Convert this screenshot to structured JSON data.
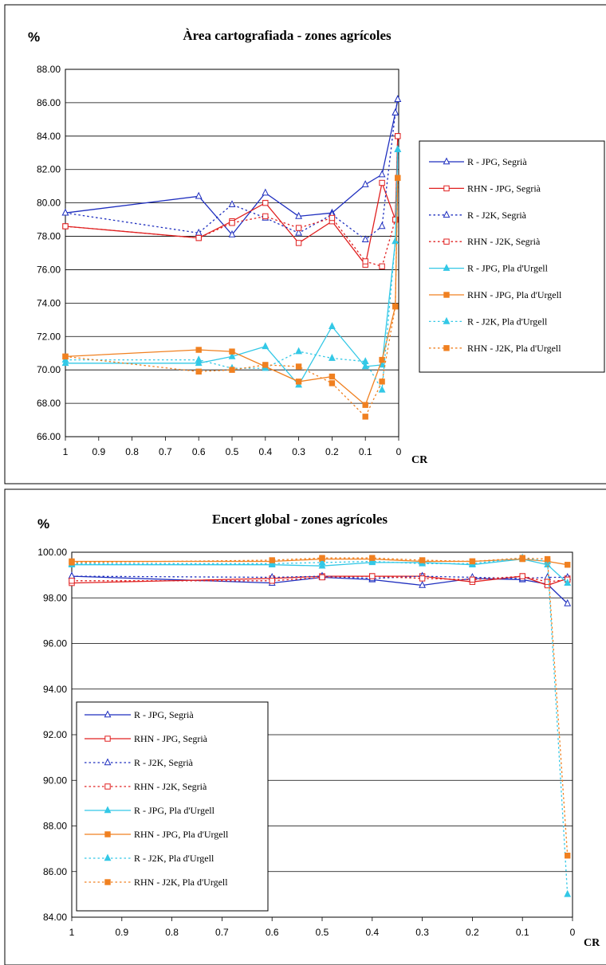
{
  "charts": [
    {
      "title": "Àrea  cartografiada - zones agrícoles",
      "y_unit_label": "%",
      "x_axis_label": "CR",
      "y_ticks": [
        "88.00",
        "86.00",
        "84.00",
        "82.00",
        "80.00",
        "78.00",
        "76.00",
        "74.00",
        "72.00",
        "70.00",
        "68.00",
        "66.00"
      ],
      "x_ticks": [
        "1",
        "0.9",
        "0.8",
        "0.7",
        "0.6",
        "0.5",
        "0.4",
        "0.3",
        "0.2",
        "0.1",
        "0"
      ]
    },
    {
      "title": "Encert global - zones agrícoles",
      "y_unit_label": "%",
      "x_axis_label": "CR",
      "y_ticks": [
        "100.00",
        "98.00",
        "96.00",
        "94.00",
        "92.00",
        "90.00",
        "88.00",
        "86.00",
        "84.00"
      ],
      "x_ticks": [
        "1",
        "0.9",
        "0.8",
        "0.7",
        "0.6",
        "0.5",
        "0.4",
        "0.3",
        "0.2",
        "0.1",
        "0"
      ]
    }
  ],
  "series_styles": [
    {
      "color": "#1f2fbf",
      "dash": false,
      "marker": "triangle-open"
    },
    {
      "color": "#e02020",
      "dash": false,
      "marker": "square-open"
    },
    {
      "color": "#1f2fbf",
      "dash": true,
      "marker": "triangle-open"
    },
    {
      "color": "#e02020",
      "dash": true,
      "marker": "square-open"
    },
    {
      "color": "#33c8e6",
      "dash": false,
      "marker": "triangle-filled"
    },
    {
      "color": "#f08020",
      "dash": false,
      "marker": "square-filled"
    },
    {
      "color": "#33c8e6",
      "dash": true,
      "marker": "triangle-filled"
    },
    {
      "color": "#f08020",
      "dash": true,
      "marker": "square-filled"
    }
  ],
  "chart_data": [
    {
      "type": "line",
      "title": "Àrea  cartografiada - zones agrícoles",
      "xlabel": "CR",
      "ylabel": "%",
      "xlim": [
        1,
        0
      ],
      "ylim": [
        66,
        88
      ],
      "legend": "right",
      "grid": true,
      "series": [
        {
          "name": "R - JPG, Segrià",
          "x": [
            1,
            0.6,
            0.5,
            0.4,
            0.3,
            0.2,
            0.1,
            0.05,
            0.01,
            0.01
          ],
          "y": [
            79.4,
            80.4,
            78.1,
            80.6,
            79.2,
            79.4,
            81.1,
            81.7,
            85.4,
            86.2
          ]
        },
        {
          "name": "RHN - JPG, Segrià",
          "x": [
            1,
            0.6,
            0.5,
            0.4,
            0.3,
            0.2,
            0.1,
            0.05,
            0.01,
            0.01
          ],
          "y": [
            78.6,
            77.9,
            78.9,
            80.0,
            77.6,
            78.9,
            76.3,
            81.2,
            79.0,
            84.0
          ]
        },
        {
          "name": "R - J2K, Segrià",
          "x": [
            1,
            0.6,
            0.5,
            0.4,
            0.3,
            0.2,
            0.1,
            0.05,
            0.01,
            0.01
          ],
          "y": [
            79.4,
            78.2,
            79.9,
            79.1,
            78.2,
            79.3,
            77.8,
            78.6,
            85.4,
            86.2
          ]
        },
        {
          "name": "RHN - J2K, Segrià",
          "x": [
            1,
            0.6,
            0.5,
            0.4,
            0.3,
            0.2,
            0.1,
            0.05,
            0.01,
            0.01
          ],
          "y": [
            78.6,
            77.9,
            78.8,
            79.2,
            78.5,
            79.1,
            76.5,
            76.2,
            79.0,
            84.0
          ]
        },
        {
          "name": "R - JPG, Pla d'Urgell",
          "x": [
            1,
            0.6,
            0.5,
            0.4,
            0.3,
            0.2,
            0.1,
            0.05,
            0.01,
            0.01
          ],
          "y": [
            70.4,
            70.4,
            70.8,
            71.4,
            69.1,
            72.6,
            70.2,
            70.3,
            77.7,
            83.2
          ]
        },
        {
          "name": "RHN - JPG, Pla d'Urgell",
          "x": [
            1,
            0.6,
            0.5,
            0.4,
            0.3,
            0.2,
            0.1,
            0.05,
            0.01,
            0.01
          ],
          "y": [
            70.8,
            71.2,
            71.1,
            70.2,
            69.3,
            69.6,
            67.9,
            70.6,
            73.8,
            81.5
          ]
        },
        {
          "name": "R - J2K, Pla d'Urgell",
          "x": [
            1,
            0.6,
            0.5,
            0.4,
            0.3,
            0.2,
            0.1,
            0.05,
            0.01,
            0.01
          ],
          "y": [
            70.6,
            70.6,
            70.1,
            70.1,
            71.1,
            70.7,
            70.5,
            68.8,
            77.7,
            83.2
          ]
        },
        {
          "name": "RHN - J2K, Pla d'Urgell",
          "x": [
            1,
            0.6,
            0.5,
            0.4,
            0.3,
            0.2,
            0.1,
            0.05,
            0.01,
            0.01
          ],
          "y": [
            70.8,
            69.9,
            70.0,
            70.3,
            70.2,
            69.2,
            67.2,
            69.3,
            73.8,
            81.5
          ]
        }
      ]
    },
    {
      "type": "line",
      "title": "Encert global - zones agrícoles",
      "xlabel": "CR",
      "ylabel": "%",
      "xlim": [
        1,
        0
      ],
      "ylim": [
        84,
        100
      ],
      "legend": "bottom-left",
      "grid": true,
      "series": [
        {
          "name": "R - JPG, Segrià",
          "x": [
            1,
            0.6,
            0.5,
            0.4,
            0.3,
            0.2,
            0.1,
            0.05,
            0.01
          ],
          "y": [
            98.95,
            98.65,
            98.9,
            98.8,
            98.55,
            98.85,
            98.8,
            98.6,
            97.75
          ]
        },
        {
          "name": "RHN - JPG, Segrià",
          "x": [
            1,
            0.6,
            0.5,
            0.4,
            0.3,
            0.2,
            0.1,
            0.05,
            0.01
          ],
          "y": [
            98.65,
            98.85,
            98.95,
            98.95,
            98.95,
            98.7,
            98.95,
            98.55,
            98.85
          ]
        },
        {
          "name": "R - J2K, Segrià",
          "x": [
            1,
            0.6,
            0.5,
            0.4,
            0.3,
            0.2,
            0.1,
            0.05,
            0.01
          ],
          "y": [
            98.95,
            98.9,
            98.95,
            98.85,
            98.95,
            98.9,
            98.85,
            98.9,
            98.9
          ]
        },
        {
          "name": "RHN - J2K, Segrià",
          "x": [
            1,
            0.6,
            0.5,
            0.4,
            0.3,
            0.2,
            0.1,
            0.05,
            0.01
          ],
          "y": [
            98.75,
            98.75,
            98.9,
            98.95,
            98.85,
            98.8,
            98.95,
            98.7,
            98.8
          ]
        },
        {
          "name": "R - JPG, Pla d'Urgell",
          "x": [
            1,
            0.6,
            0.5,
            0.4,
            0.3,
            0.2,
            0.1,
            0.05,
            0.01
          ],
          "y": [
            99.45,
            99.45,
            99.4,
            99.55,
            99.55,
            99.45,
            99.7,
            99.45,
            98.65
          ]
        },
        {
          "name": "RHN - JPG, Pla d'Urgell",
          "x": [
            1,
            0.6,
            0.5,
            0.4,
            0.3,
            0.2,
            0.1,
            0.05,
            0.01
          ],
          "y": [
            99.6,
            99.6,
            99.7,
            99.7,
            99.6,
            99.6,
            99.7,
            99.6,
            99.45
          ]
        },
        {
          "name": "R - J2K, Pla d'Urgell",
          "x": [
            1,
            0.6,
            0.5,
            0.4,
            0.3,
            0.2,
            0.1,
            0.05,
            0.01
          ],
          "y": [
            99.5,
            99.5,
            99.55,
            99.6,
            99.5,
            99.5,
            99.75,
            99.6,
            85.0
          ]
        },
        {
          "name": "RHN - J2K, Pla d'Urgell",
          "x": [
            1,
            0.6,
            0.5,
            0.4,
            0.3,
            0.2,
            0.1,
            0.05,
            0.01
          ],
          "y": [
            99.55,
            99.65,
            99.75,
            99.75,
            99.65,
            99.6,
            99.75,
            99.7,
            86.7
          ]
        }
      ]
    }
  ]
}
